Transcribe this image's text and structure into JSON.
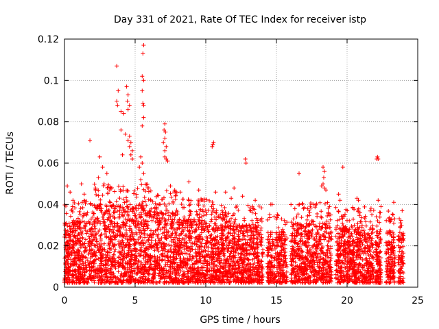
{
  "chart_data": {
    "type": "scatter",
    "title": "Day 331 of 2021, Rate Of TEC Index for receiver istp",
    "xlabel": "GPS time / hours",
    "ylabel": "ROTI / TECUs",
    "xlim": [
      0,
      25
    ],
    "ylim": [
      0,
      0.12
    ],
    "xticks": [
      "0",
      "5",
      "10",
      "15",
      "20",
      "25"
    ],
    "yticks": [
      "0",
      "0.02",
      "0.04",
      "0.06",
      "0.08",
      "0.1",
      "0.12"
    ],
    "grid": true,
    "marker": "plus",
    "color": "#ff0000",
    "outlier_points": [
      [
        3.7,
        0.107
      ],
      [
        5.6,
        0.117
      ],
      [
        5.55,
        0.113
      ],
      [
        5.5,
        0.102
      ],
      [
        5.6,
        0.1
      ],
      [
        3.8,
        0.095
      ],
      [
        3.7,
        0.09
      ],
      [
        3.75,
        0.088
      ],
      [
        4.4,
        0.097
      ],
      [
        4.5,
        0.093
      ],
      [
        4.45,
        0.09
      ],
      [
        4.6,
        0.088
      ],
      [
        4.5,
        0.086
      ],
      [
        4.0,
        0.085
      ],
      [
        4.2,
        0.084
      ],
      [
        5.5,
        0.095
      ],
      [
        5.55,
        0.089
      ],
      [
        5.6,
        0.088
      ],
      [
        5.6,
        0.082
      ],
      [
        5.5,
        0.078
      ],
      [
        4.0,
        0.076
      ],
      [
        4.3,
        0.074
      ],
      [
        4.6,
        0.073
      ],
      [
        4.5,
        0.071
      ],
      [
        4.7,
        0.07
      ],
      [
        4.6,
        0.068
      ],
      [
        4.8,
        0.066
      ],
      [
        4.7,
        0.064
      ],
      [
        4.1,
        0.064
      ],
      [
        4.8,
        0.062
      ],
      [
        1.8,
        0.071
      ],
      [
        2.5,
        0.063
      ],
      [
        2.7,
        0.058
      ],
      [
        3.0,
        0.055
      ],
      [
        7.1,
        0.079
      ],
      [
        7.05,
        0.076
      ],
      [
        7.15,
        0.075
      ],
      [
        7.1,
        0.072
      ],
      [
        7.0,
        0.07
      ],
      [
        7.2,
        0.068
      ],
      [
        7.1,
        0.066
      ],
      [
        7.3,
        0.061
      ],
      [
        7.2,
        0.062
      ],
      [
        7.1,
        0.063
      ],
      [
        5.4,
        0.063
      ],
      [
        5.5,
        0.06
      ],
      [
        5.3,
        0.058
      ],
      [
        5.6,
        0.055
      ],
      [
        5.4,
        0.052
      ],
      [
        10.5,
        0.069
      ],
      [
        10.55,
        0.07
      ],
      [
        10.45,
        0.068
      ],
      [
        12.8,
        0.062
      ],
      [
        12.85,
        0.06
      ],
      [
        16.6,
        0.055
      ],
      [
        18.3,
        0.058
      ],
      [
        18.4,
        0.056
      ],
      [
        18.35,
        0.053
      ],
      [
        18.3,
        0.05
      ],
      [
        18.4,
        0.048
      ],
      [
        18.2,
        0.049
      ],
      [
        18.5,
        0.047
      ],
      [
        19.7,
        0.058
      ],
      [
        22.1,
        0.062
      ],
      [
        22.2,
        0.062
      ],
      [
        22.15,
        0.063
      ],
      [
        8.8,
        0.051
      ],
      [
        9.5,
        0.047
      ],
      [
        7.5,
        0.049
      ],
      [
        7.8,
        0.047
      ],
      [
        8.2,
        0.046
      ],
      [
        10.7,
        0.046
      ],
      [
        11.4,
        0.046
      ],
      [
        11.8,
        0.043
      ],
      [
        12.0,
        0.048
      ],
      [
        12.6,
        0.044
      ],
      [
        13.5,
        0.042
      ],
      [
        14.7,
        0.04
      ],
      [
        14.6,
        0.04
      ],
      [
        16.3,
        0.038
      ],
      [
        17.2,
        0.038
      ],
      [
        17.6,
        0.04
      ],
      [
        19.4,
        0.045
      ],
      [
        19.5,
        0.042
      ],
      [
        20.7,
        0.043
      ],
      [
        20.8,
        0.042
      ],
      [
        22.2,
        0.042
      ],
      [
        22.4,
        0.039
      ],
      [
        23.3,
        0.041
      ],
      [
        23.9,
        0.037
      ],
      [
        0.2,
        0.049
      ],
      [
        0.4,
        0.046
      ],
      [
        0.6,
        0.042
      ],
      [
        1.2,
        0.05
      ],
      [
        1.4,
        0.045
      ],
      [
        2.2,
        0.048
      ],
      [
        2.4,
        0.053
      ],
      [
        2.8,
        0.05
      ],
      [
        3.2,
        0.047
      ]
    ],
    "dense_band_description_free": true
  }
}
